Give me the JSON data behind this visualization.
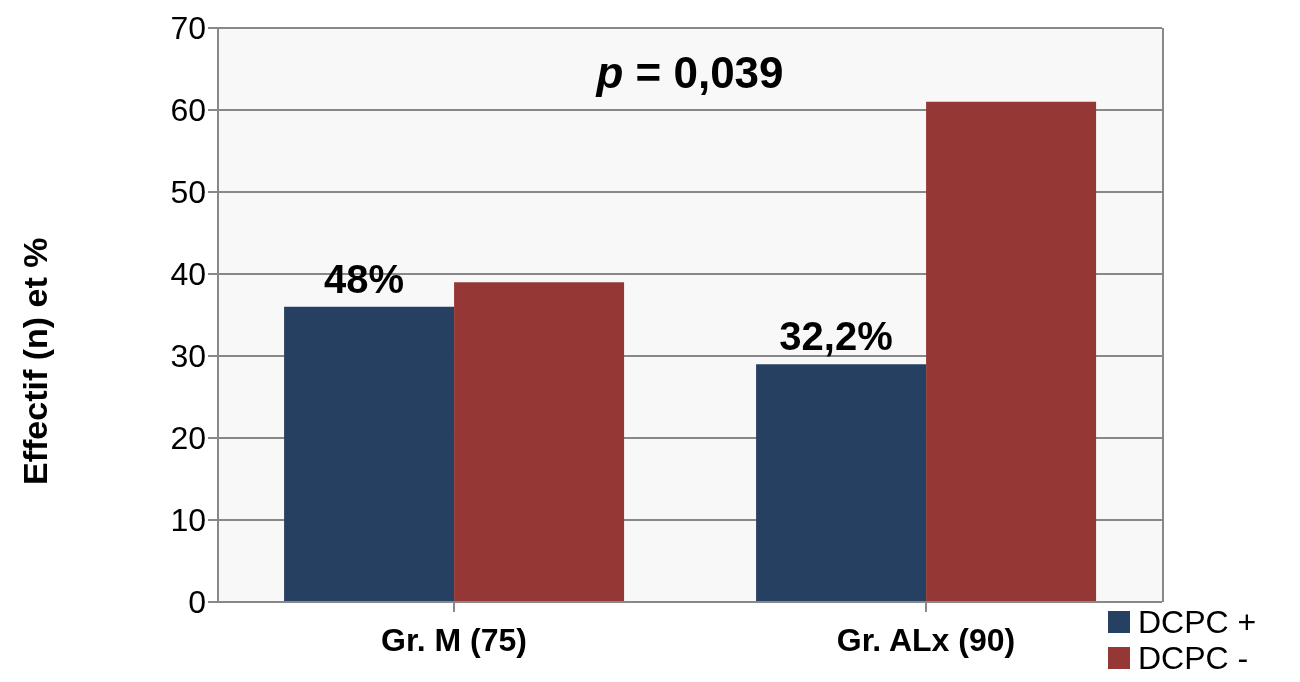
{
  "chart_data": {
    "type": "bar",
    "ylabel": "Effectif (n) et %",
    "categories": [
      "Gr. M (75)",
      "Gr. ALx (90)"
    ],
    "series": [
      {
        "name": "DCPC +",
        "color": "#264061",
        "values": [
          36,
          29
        ]
      },
      {
        "name": "DCPC -",
        "color": "#953735",
        "values": [
          39,
          61
        ]
      }
    ],
    "ylim": [
      0,
      70
    ],
    "yticks": [
      0,
      10,
      20,
      30,
      40,
      50,
      60,
      70
    ],
    "grid": "y",
    "legend": "bottom right",
    "annotations": [
      "p = 0,039",
      {
        "text": "48%",
        "x": "Gr. M (75)",
        "y": 36
      },
      {
        "text": "32,2%",
        "x": "Gr. ALx (90)",
        "y": 29
      }
    ]
  }
}
